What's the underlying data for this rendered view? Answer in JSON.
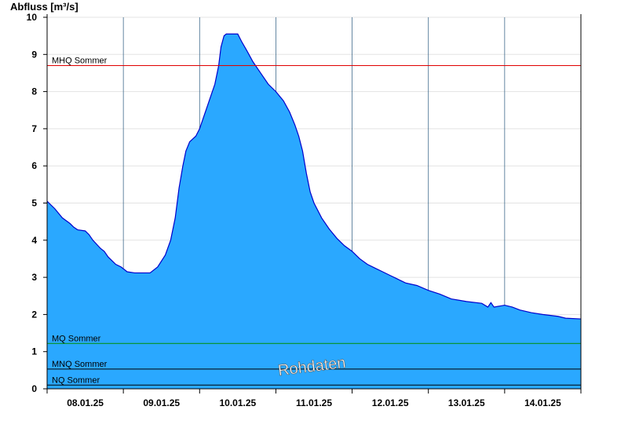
{
  "chart_data": {
    "type": "area",
    "ylabel": "Abfluss [m³/s]",
    "ylim": [
      0,
      10
    ],
    "yticks": [
      "0",
      "1",
      "2",
      "3",
      "4",
      "5",
      "6",
      "7",
      "8",
      "9",
      "10"
    ],
    "x_tick_labels": [
      "08.01.25",
      "09.01.25",
      "10.01.25",
      "11.01.25",
      "12.01.25",
      "13.01.25",
      "14.01.25"
    ],
    "x_range_days": [
      0,
      7
    ],
    "grid": true,
    "watermark": "Rohdaten",
    "colors": {
      "fill": "#2aa8ff",
      "line": "#0000cc",
      "grid": "#e3e3e3",
      "MHQ": "#e00000",
      "MQ": "#009000",
      "MNQ": "#000000",
      "NQ": "#000000"
    },
    "series": [
      {
        "values": [
          [
            0.0,
            5.05
          ],
          [
            0.1,
            4.85
          ],
          [
            0.2,
            4.6
          ],
          [
            0.3,
            4.45
          ],
          [
            0.35,
            4.35
          ],
          [
            0.4,
            4.28
          ],
          [
            0.5,
            4.25
          ],
          [
            0.55,
            4.15
          ],
          [
            0.6,
            4.0
          ],
          [
            0.7,
            3.78
          ],
          [
            0.75,
            3.7
          ],
          [
            0.8,
            3.55
          ],
          [
            0.9,
            3.35
          ],
          [
            0.97,
            3.28
          ],
          [
            1.05,
            3.15
          ],
          [
            1.15,
            3.12
          ],
          [
            1.35,
            3.12
          ],
          [
            1.45,
            3.28
          ],
          [
            1.55,
            3.6
          ],
          [
            1.62,
            4.0
          ],
          [
            1.68,
            4.6
          ],
          [
            1.73,
            5.4
          ],
          [
            1.78,
            6.0
          ],
          [
            1.82,
            6.4
          ],
          [
            1.87,
            6.65
          ],
          [
            1.95,
            6.8
          ],
          [
            2.0,
            7.0
          ],
          [
            2.05,
            7.3
          ],
          [
            2.1,
            7.6
          ],
          [
            2.15,
            7.9
          ],
          [
            2.2,
            8.2
          ],
          [
            2.25,
            8.7
          ],
          [
            2.28,
            9.2
          ],
          [
            2.32,
            9.5
          ],
          [
            2.35,
            9.55
          ],
          [
            2.5,
            9.55
          ],
          [
            2.55,
            9.35
          ],
          [
            2.62,
            9.1
          ],
          [
            2.7,
            8.8
          ],
          [
            2.8,
            8.5
          ],
          [
            2.9,
            8.2
          ],
          [
            3.0,
            8.0
          ],
          [
            3.1,
            7.75
          ],
          [
            3.18,
            7.45
          ],
          [
            3.25,
            7.1
          ],
          [
            3.3,
            6.8
          ],
          [
            3.35,
            6.4
          ],
          [
            3.4,
            5.8
          ],
          [
            3.45,
            5.3
          ],
          [
            3.5,
            5.0
          ],
          [
            3.6,
            4.6
          ],
          [
            3.7,
            4.3
          ],
          [
            3.8,
            4.05
          ],
          [
            3.9,
            3.85
          ],
          [
            4.0,
            3.7
          ],
          [
            4.1,
            3.5
          ],
          [
            4.2,
            3.35
          ],
          [
            4.3,
            3.25
          ],
          [
            4.4,
            3.15
          ],
          [
            4.5,
            3.05
          ],
          [
            4.6,
            2.95
          ],
          [
            4.7,
            2.85
          ],
          [
            4.85,
            2.78
          ],
          [
            5.0,
            2.65
          ],
          [
            5.15,
            2.55
          ],
          [
            5.3,
            2.42
          ],
          [
            5.5,
            2.35
          ],
          [
            5.7,
            2.3
          ],
          [
            5.78,
            2.2
          ],
          [
            5.82,
            2.32
          ],
          [
            5.86,
            2.2
          ],
          [
            6.0,
            2.25
          ],
          [
            6.1,
            2.2
          ],
          [
            6.2,
            2.12
          ],
          [
            6.35,
            2.05
          ],
          [
            6.5,
            2.0
          ],
          [
            6.7,
            1.95
          ],
          [
            6.8,
            1.9
          ],
          [
            7.0,
            1.88
          ]
        ]
      }
    ],
    "reference_lines": [
      {
        "label": "MHQ Sommer",
        "value": 8.7,
        "color": "#e00000"
      },
      {
        "label": "MQ Sommer",
        "value": 1.22,
        "color": "#009000"
      },
      {
        "label": "MNQ Sommer",
        "value": 0.53,
        "color": "#000000"
      },
      {
        "label": "NQ Sommer",
        "value": 0.1,
        "color": "#000000"
      }
    ]
  }
}
